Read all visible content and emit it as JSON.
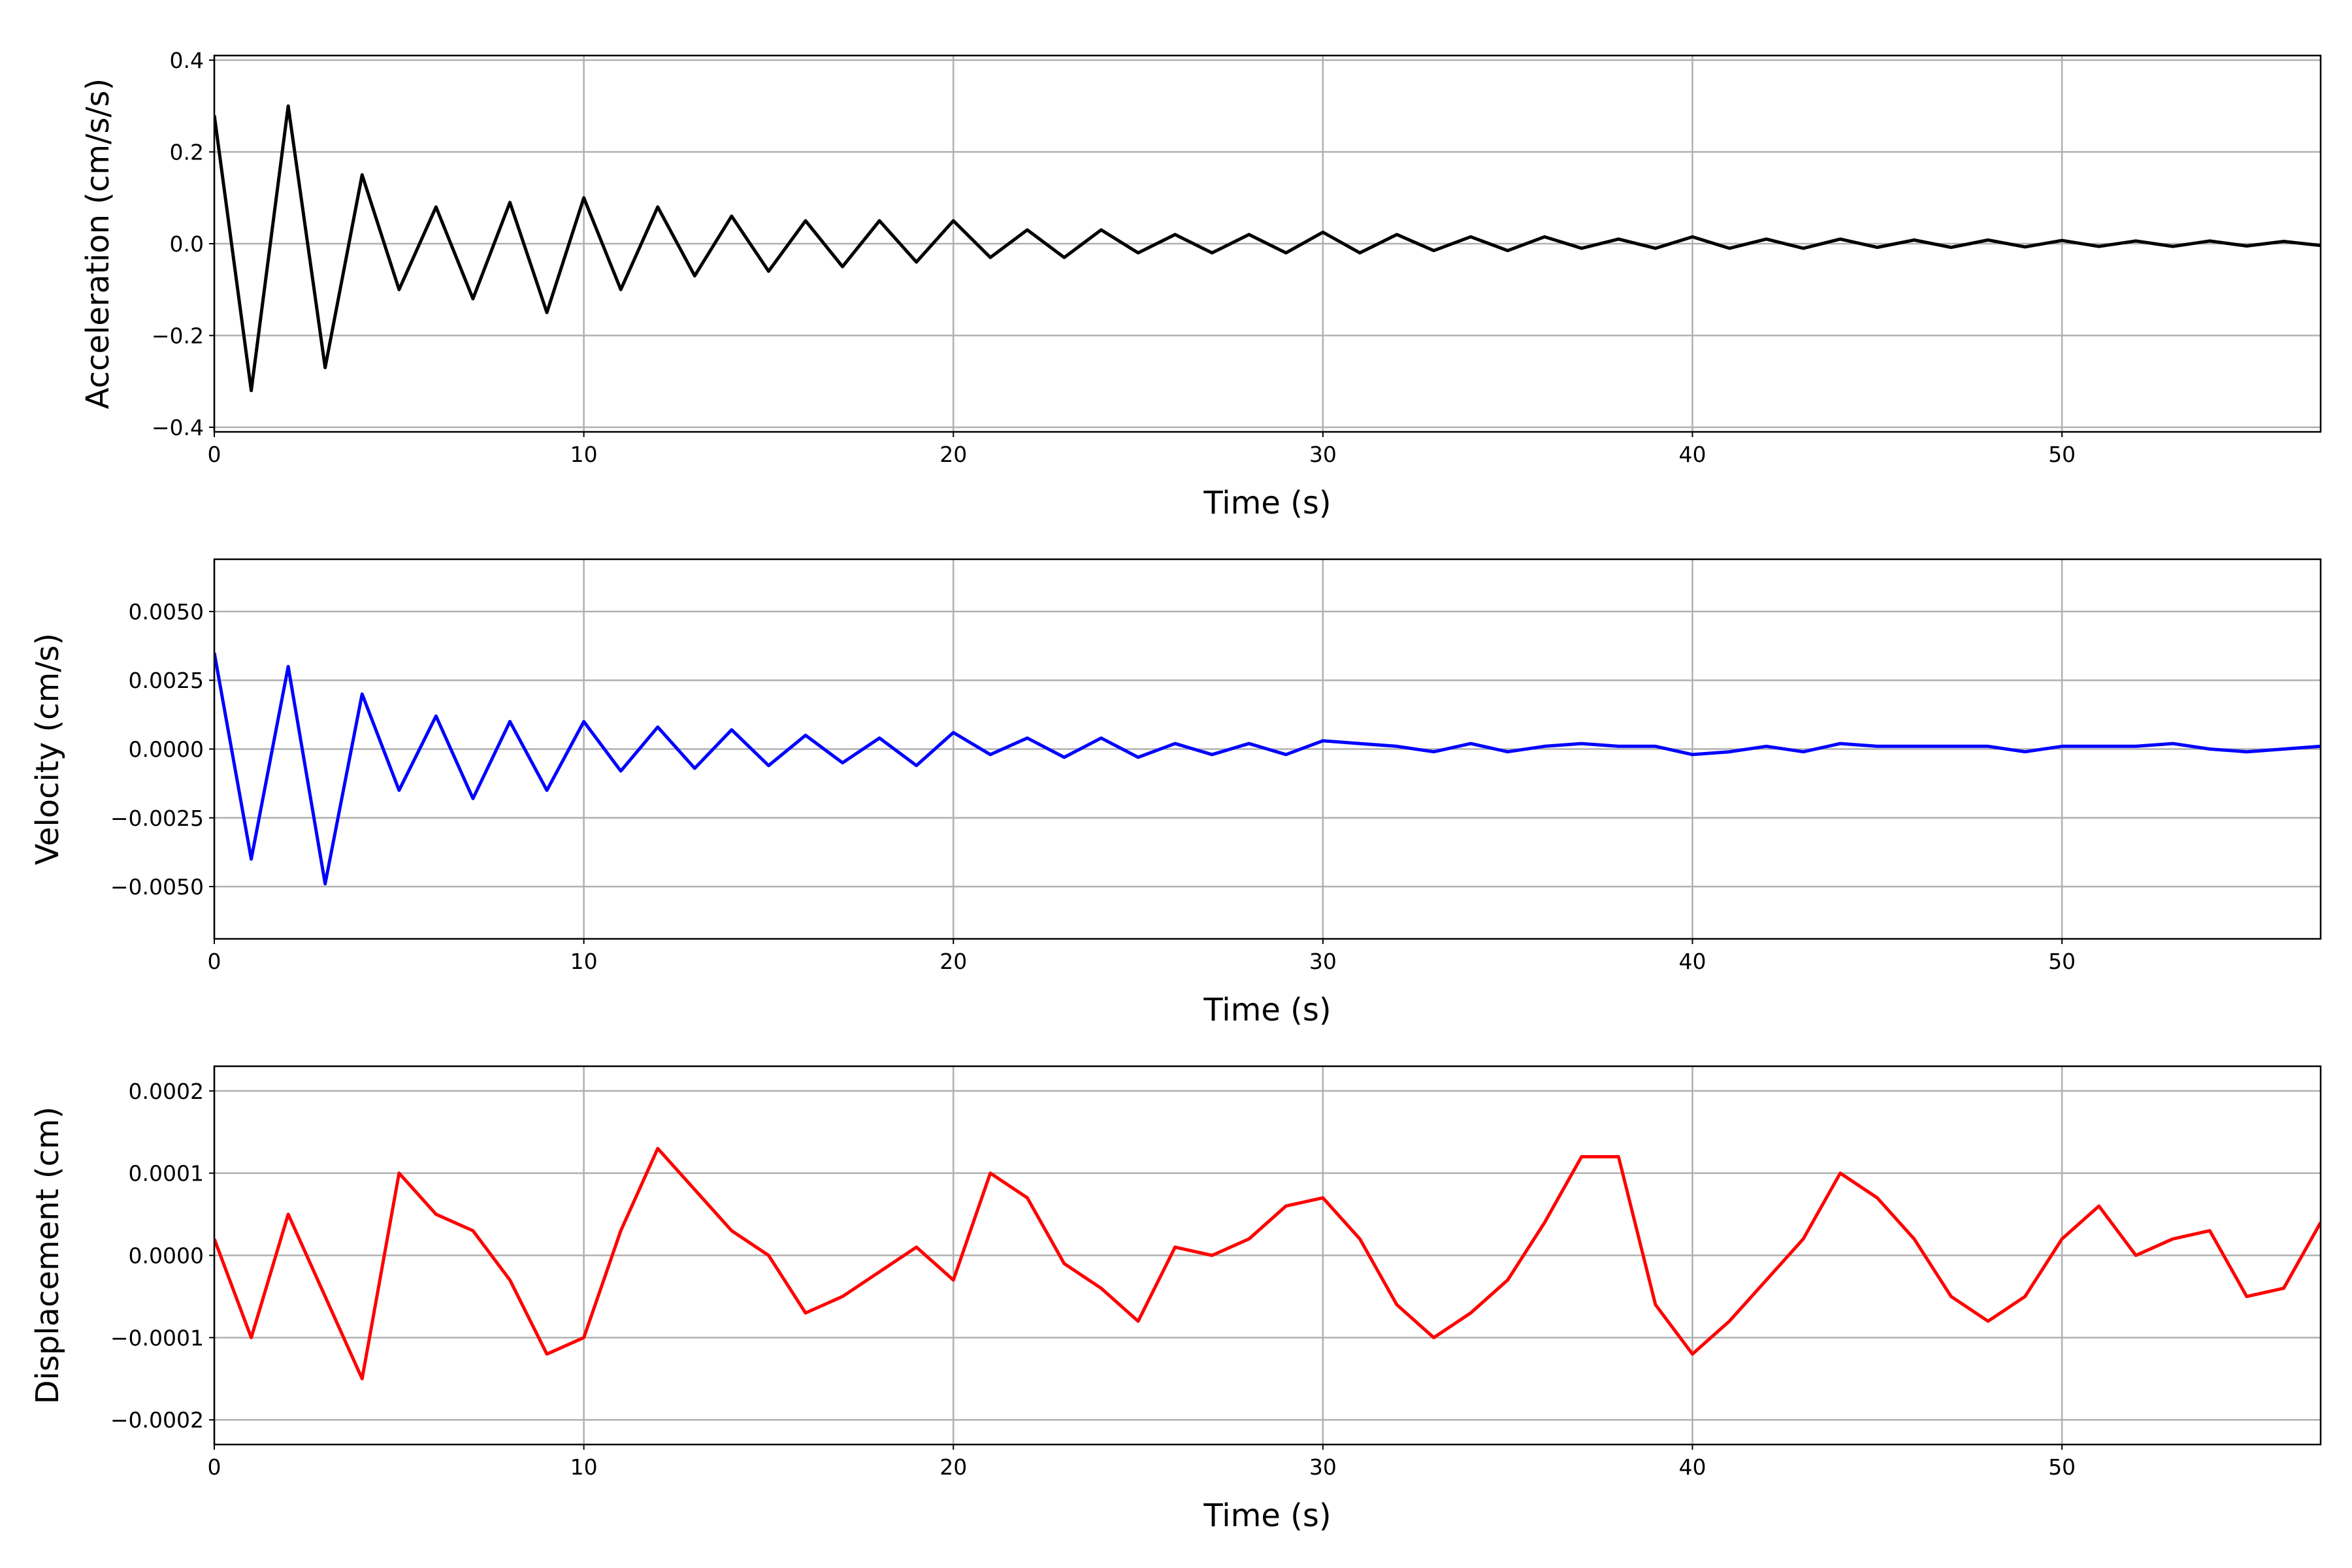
{
  "chart_data": [
    {
      "type": "line",
      "xlabel": "Time (s)",
      "ylabel": "Acceleration (cm/s/s)",
      "grid": true,
      "xlim": [
        0,
        57
      ],
      "xticks": [
        0,
        10,
        20,
        30,
        40,
        50
      ],
      "ylim": [
        -0.41,
        0.41
      ],
      "yticks": [
        {
          "value": -0.4,
          "label": "−0.4"
        },
        {
          "value": -0.2,
          "label": "−0.2"
        },
        {
          "value": 0,
          "label": "0.0"
        },
        {
          "value": 0.2,
          "label": "0.2"
        },
        {
          "value": 0.4,
          "label": "0.4"
        }
      ],
      "x": [
        0,
        1,
        2,
        3,
        4,
        5,
        6,
        7,
        8,
        9,
        10,
        11,
        12,
        13,
        14,
        15,
        16,
        17,
        18,
        19,
        20,
        21,
        22,
        23,
        24,
        25,
        26,
        27,
        28,
        29,
        30,
        31,
        32,
        33,
        34,
        35,
        36,
        37,
        38,
        39,
        40,
        41,
        42,
        43,
        44,
        45,
        46,
        47,
        48,
        49,
        50,
        51,
        52,
        53,
        54,
        55,
        56,
        57
      ],
      "series": [
        {
          "color": "#000000",
          "values": [
            0.28,
            -0.32,
            0.3,
            -0.27,
            0.15,
            -0.1,
            0.08,
            -0.12,
            0.09,
            -0.15,
            0.1,
            -0.1,
            0.08,
            -0.07,
            0.06,
            -0.06,
            0.05,
            -0.05,
            0.05,
            -0.04,
            0.05,
            -0.03,
            0.03,
            -0.03,
            0.03,
            -0.02,
            0.02,
            -0.02,
            0.02,
            -0.02,
            0.025,
            -0.02,
            0.02,
            -0.015,
            0.015,
            -0.015,
            0.015,
            -0.01,
            0.01,
            -0.01,
            0.015,
            -0.01,
            0.01,
            -0.01,
            0.01,
            -0.008,
            0.008,
            -0.008,
            0.008,
            -0.007,
            0.007,
            -0.006,
            0.006,
            -0.006,
            0.006,
            -0.005,
            0.005,
            -0.004
          ]
        }
      ]
    },
    {
      "type": "line",
      "xlabel": "Time (s)",
      "ylabel": "Velocity (cm/s)",
      "grid": true,
      "xlim": [
        0,
        57
      ],
      "xticks": [
        0,
        10,
        20,
        30,
        40,
        50
      ],
      "ylim": [
        -0.0069,
        0.0069
      ],
      "yticks": [
        {
          "value": -0.005,
          "label": "−0.0050"
        },
        {
          "value": -0.0025,
          "label": "−0.0025"
        },
        {
          "value": 0,
          "label": "0.0000"
        },
        {
          "value": 0.0025,
          "label": "0.0025"
        },
        {
          "value": 0.005,
          "label": "0.0050"
        }
      ],
      "x": [
        0,
        1,
        2,
        3,
        4,
        5,
        6,
        7,
        8,
        9,
        10,
        11,
        12,
        13,
        14,
        15,
        16,
        17,
        18,
        19,
        20,
        21,
        22,
        23,
        24,
        25,
        26,
        27,
        28,
        29,
        30,
        31,
        32,
        33,
        34,
        35,
        36,
        37,
        38,
        39,
        40,
        41,
        42,
        43,
        44,
        45,
        46,
        47,
        48,
        49,
        50,
        51,
        52,
        53,
        54,
        55,
        56,
        57
      ],
      "series": [
        {
          "color": "#0000ff",
          "values": [
            0.0035,
            -0.004,
            0.003,
            -0.0049,
            0.002,
            -0.0015,
            0.0012,
            -0.0018,
            0.001,
            -0.0015,
            0.001,
            -0.0008,
            0.0008,
            -0.0007,
            0.0007,
            -0.0006,
            0.0005,
            -0.0005,
            0.0004,
            -0.0006,
            0.0006,
            -0.0002,
            0.0004,
            -0.0003,
            0.0004,
            -0.0003,
            0.0002,
            -0.0002,
            0.0002,
            -0.0002,
            0.0003,
            0.0002,
            0.0001,
            -0.0001,
            0.0002,
            -0.0001,
            0.0001,
            0.0002,
            0.0001,
            0.0001,
            -0.0002,
            -0.0001,
            0.0001,
            -0.0001,
            0.0002,
            0.0001,
            0.0001,
            0.0001,
            0.0001,
            -0.0001,
            0.0001,
            0.0001,
            0.0001,
            0.0002,
            0,
            -0.0001,
            0,
            0.0001
          ]
        }
      ]
    },
    {
      "type": "line",
      "xlabel": "Time (s)",
      "ylabel": "Displacement (cm)",
      "grid": true,
      "xlim": [
        0,
        57
      ],
      "xticks": [
        0,
        10,
        20,
        30,
        40,
        50
      ],
      "ylim": [
        -0.00023,
        0.00023
      ],
      "yticks": [
        {
          "value": -0.0002,
          "label": "−0.0002"
        },
        {
          "value": -0.0001,
          "label": "−0.0001"
        },
        {
          "value": 0,
          "label": "0.0000"
        },
        {
          "value": 0.0001,
          "label": "0.0001"
        },
        {
          "value": 0.0002,
          "label": "0.0002"
        }
      ],
      "x": [
        0,
        1,
        2,
        3,
        4,
        5,
        6,
        7,
        8,
        9,
        10,
        11,
        12,
        13,
        14,
        15,
        16,
        17,
        18,
        19,
        20,
        21,
        22,
        23,
        24,
        25,
        26,
        27,
        28,
        29,
        30,
        31,
        32,
        33,
        34,
        35,
        36,
        37,
        38,
        39,
        40,
        41,
        42,
        43,
        44,
        45,
        46,
        47,
        48,
        49,
        50,
        51,
        52,
        53,
        54,
        55,
        56,
        57
      ],
      "series": [
        {
          "color": "#ff0000",
          "values": [
            2e-05,
            -0.0001,
            5e-05,
            -5e-05,
            -0.00015,
            0.0001,
            5e-05,
            3e-05,
            -3e-05,
            -0.00012,
            -0.0001,
            3e-05,
            0.00013,
            8e-05,
            3e-05,
            0,
            -7e-05,
            -5e-05,
            -2e-05,
            1e-05,
            -3e-05,
            0.0001,
            7e-05,
            -1e-05,
            -4e-05,
            -8e-05,
            1e-05,
            0,
            2e-05,
            6e-05,
            7e-05,
            2e-05,
            -6e-05,
            -0.0001,
            -7e-05,
            -3e-05,
            4e-05,
            0.00012,
            0.00012,
            -6e-05,
            -0.00012,
            -8e-05,
            -3e-05,
            2e-05,
            0.0001,
            7e-05,
            2e-05,
            -5e-05,
            -8e-05,
            -5e-05,
            2e-05,
            6e-05,
            0,
            2e-05,
            3e-05,
            -5e-05,
            -4e-05,
            4e-05
          ]
        }
      ]
    }
  ]
}
